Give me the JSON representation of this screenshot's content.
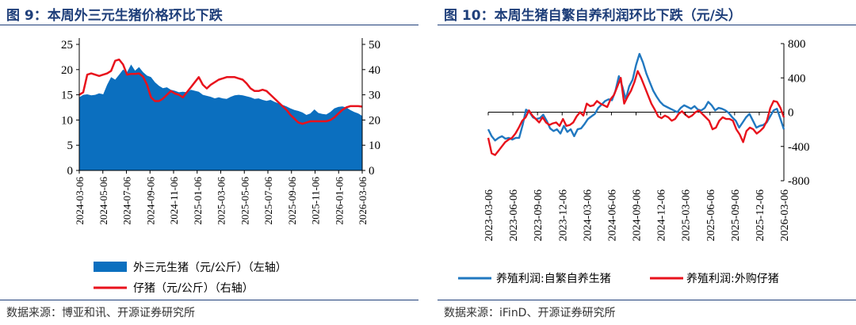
{
  "left": {
    "title": "图 9：本周外三元生猪价格环比下跌",
    "source": "数据来源：博亚和讯、开源证券研究所",
    "legend": {
      "area": "外三元生猪（元/公斤）（左轴）",
      "line": "仔猪（元/公斤）（右轴）"
    },
    "colors": {
      "area": "#0b6fbf",
      "line": "#e8121c"
    }
  },
  "right": {
    "title": "图 10：本周生猪自繁自养利润环比下跌（元/头）",
    "source": "数据来源：iFinD、开源证券研究所",
    "legend": {
      "blue": "养殖利润:自繁自养生猪",
      "red": "养殖利润:外购仔猪"
    },
    "colors": {
      "blue": "#2178c0",
      "red": "#e8121c"
    }
  },
  "chart_data": [
    {
      "type": "area",
      "title": "本周外三元生猪价格环比下跌",
      "x_ticks": [
        "2024-03-06",
        "2024-05-06",
        "2024-07-06",
        "2024-09-06",
        "2024-11-06",
        "2025-01-06",
        "2025-03-06",
        "2025-05-06",
        "2025-07-06",
        "2025-09-06",
        "2025-11-06",
        "2026-01-06",
        "2026-03-06"
      ],
      "ylim_left": [
        0,
        25
      ],
      "yticks_left": [
        "0",
        "5",
        "10",
        "15",
        "20",
        "25"
      ],
      "ylim_right": [
        0,
        50
      ],
      "yticks_right": [
        "0",
        "10",
        "20",
        "30",
        "40",
        "50"
      ],
      "series": [
        {
          "name": "外三元生猪（元/公斤）（左轴）",
          "axis": "left",
          "kind": "area",
          "values": [
            14.5,
            15.0,
            15.1,
            14.9,
            15.0,
            15.3,
            15.1,
            17.0,
            18.5,
            18.0,
            19.0,
            20.0,
            19.5,
            21.0,
            19.8,
            20.5,
            19.5,
            18.8,
            18.5,
            17.5,
            16.8,
            16.3,
            16.5,
            16.0,
            15.8,
            15.5,
            15.6,
            15.5,
            16.0,
            15.8,
            15.6,
            15.0,
            14.8,
            14.6,
            14.3,
            14.5,
            14.3,
            14.2,
            14.6,
            14.9,
            15.0,
            14.9,
            14.7,
            14.5,
            14.2,
            14.3,
            14.0,
            13.8,
            14.0,
            13.6,
            13.3,
            13.0,
            12.7,
            12.3,
            12.0,
            11.8,
            11.5,
            11.0,
            11.3,
            12.1,
            11.4,
            11.2,
            11.1,
            11.6,
            12.3,
            12.6,
            12.7,
            12.5,
            12.0,
            11.6,
            11.3,
            10.8
          ]
        },
        {
          "name": "仔猪（元/公斤）（右轴）",
          "axis": "right",
          "kind": "line",
          "values": [
            30,
            31,
            38,
            38.5,
            38,
            37.5,
            38,
            38.5,
            39.5,
            43.5,
            44,
            42,
            38,
            38.3,
            38.3,
            38.5,
            37.2,
            34,
            29,
            27.5,
            27.5,
            28.5,
            30,
            31.5,
            30.5,
            30,
            29,
            31,
            33,
            35,
            37,
            34,
            32.5,
            34,
            35,
            36,
            36.5,
            37,
            37,
            37,
            36.5,
            36,
            34.5,
            32.5,
            31.5,
            31.5,
            32,
            31.5,
            30,
            28.5,
            27,
            25.5,
            24,
            22,
            20.5,
            19,
            18.5,
            19,
            19.5,
            19.5,
            19.5,
            19.5,
            19.5,
            20,
            21,
            22.5,
            24,
            25,
            25.5,
            25.5,
            25.5,
            25.3
          ]
        }
      ]
    },
    {
      "type": "line",
      "title": "本周生猪自繁自养利润环比下跌（元/头）",
      "x_ticks": [
        "2023-03-06",
        "2023-06-06",
        "2023-09-06",
        "2023-12-06",
        "2024-03-06",
        "2024-06-06",
        "2024-09-06",
        "2024-12-06",
        "2025-03-06",
        "2025-06-06",
        "2025-09-06",
        "2025-12-06",
        "2026-03-06"
      ],
      "ylim": [
        -800,
        800
      ],
      "yticks": [
        "800",
        "400",
        "0",
        "-400",
        "-800"
      ],
      "series": [
        {
          "name": "养殖利润:自繁自养生猪",
          "values": [
            -200,
            -280,
            -330,
            -300,
            -280,
            -310,
            -300,
            -320,
            -300,
            -300,
            -150,
            30,
            0,
            -60,
            -80,
            -70,
            -30,
            -100,
            -190,
            -220,
            -200,
            -250,
            -160,
            -230,
            -200,
            -280,
            -200,
            -190,
            -140,
            -80,
            -50,
            -20,
            50,
            90,
            130,
            150,
            140,
            250,
            420,
            300,
            150,
            300,
            380,
            550,
            680,
            580,
            450,
            350,
            250,
            180,
            120,
            80,
            60,
            40,
            20,
            0,
            50,
            80,
            60,
            40,
            70,
            30,
            20,
            50,
            120,
            80,
            20,
            50,
            40,
            20,
            -10,
            -60,
            -100,
            -180,
            -120,
            -60,
            -20,
            -100,
            -180,
            -160,
            -150,
            -120,
            -50,
            20,
            40,
            -80,
            -200
          ]
        },
        {
          "name": "养殖利润:外购仔猪",
          "values": [
            -300,
            -480,
            -500,
            -450,
            -400,
            -350,
            -320,
            -300,
            -250,
            -180,
            -100,
            -60,
            20,
            -40,
            -80,
            -120,
            -60,
            -120,
            -150,
            -130,
            -120,
            -160,
            -80,
            -160,
            -150,
            -120,
            -50,
            0,
            -40,
            100,
            70,
            80,
            130,
            100,
            80,
            60,
            150,
            200,
            300,
            400,
            100,
            180,
            250,
            350,
            480,
            400,
            300,
            200,
            100,
            30,
            -50,
            -70,
            -40,
            -60,
            -100,
            -80,
            -20,
            10,
            -30,
            -60,
            -40,
            0,
            20,
            -20,
            -60,
            -100,
            -200,
            -180,
            -100,
            -60,
            -80,
            -80,
            -100,
            -200,
            -260,
            -350,
            -220,
            -180,
            -200,
            -250,
            -220,
            -180,
            -100,
            50,
            130,
            120,
            50,
            -60
          ]
        }
      ]
    }
  ]
}
